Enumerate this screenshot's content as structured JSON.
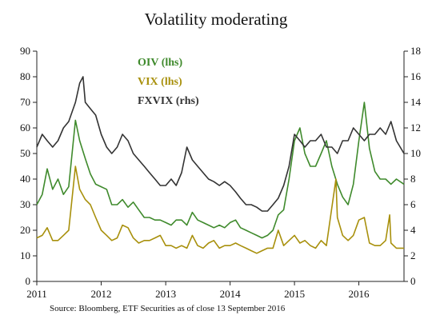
{
  "chart_data": {
    "type": "line",
    "title": "Volatility moderating",
    "source": "Source: Bloomberg, ETF Securities as of close 13 September 2016",
    "colors": {
      "OIV": "#3f8a2c",
      "VIX": "#a8900c",
      "FXVIX": "#333333"
    },
    "x_ticks": [
      "2011",
      "2012",
      "2013",
      "2014",
      "2015",
      "2016"
    ],
    "x_range": [
      "2011-01-01",
      "2016-09-13"
    ],
    "y_left": {
      "ticks": [
        "0",
        "10",
        "20",
        "30",
        "40",
        "50",
        "60",
        "70",
        "80",
        "90"
      ],
      "ylim": [
        0,
        90
      ]
    },
    "y_right": {
      "ticks": [
        "0",
        "2",
        "4",
        "6",
        "8",
        "10",
        "12",
        "14",
        "16",
        "18"
      ],
      "ylim": [
        0,
        18
      ]
    },
    "legend": [
      {
        "label": "OIV (lhs)",
        "key": "OIV"
      },
      {
        "label": "VIX (lhs)",
        "key": "VIX"
      },
      {
        "label": "FXVIX (rhs)",
        "key": "FXVIX"
      }
    ],
    "series": [
      {
        "name": "OIV (lhs)",
        "axis": "left",
        "key": "OIV",
        "x": [
          "2011-01-01",
          "2011-02-01",
          "2011-03-01",
          "2011-04-01",
          "2011-05-01",
          "2011-06-01",
          "2011-07-01",
          "2011-08-08",
          "2011-09-01",
          "2011-10-03",
          "2011-11-01",
          "2011-12-01",
          "2012-01-01",
          "2012-02-01",
          "2012-03-01",
          "2012-04-01",
          "2012-05-01",
          "2012-06-01",
          "2012-07-01",
          "2012-08-01",
          "2012-09-01",
          "2012-10-01",
          "2012-11-01",
          "2012-12-01",
          "2013-01-01",
          "2013-02-01",
          "2013-03-01",
          "2013-04-01",
          "2013-05-01",
          "2013-06-01",
          "2013-07-01",
          "2013-08-01",
          "2013-09-01",
          "2013-10-01",
          "2013-11-01",
          "2013-12-01",
          "2014-01-01",
          "2014-02-01",
          "2014-03-01",
          "2014-04-01",
          "2014-05-01",
          "2014-06-01",
          "2014-07-01",
          "2014-08-01",
          "2014-09-01",
          "2014-10-01",
          "2014-11-01",
          "2014-12-01",
          "2015-01-01",
          "2015-02-01",
          "2015-03-01",
          "2015-04-01",
          "2015-05-01",
          "2015-06-01",
          "2015-07-01",
          "2015-08-01",
          "2015-09-01",
          "2015-10-01",
          "2015-11-01",
          "2015-12-01",
          "2016-01-01",
          "2016-02-01",
          "2016-03-01",
          "2016-04-01",
          "2016-05-01",
          "2016-06-01",
          "2016-07-01",
          "2016-08-01",
          "2016-09-13"
        ],
        "y": [
          30,
          34,
          44,
          36,
          40,
          34,
          37,
          63,
          55,
          48,
          42,
          38,
          37,
          36,
          30,
          30,
          32,
          29,
          31,
          28,
          25,
          25,
          24,
          24,
          23,
          22,
          24,
          24,
          22,
          27,
          24,
          23,
          22,
          21,
          22,
          21,
          23,
          24,
          21,
          20,
          19,
          18,
          17,
          18,
          20,
          26,
          28,
          40,
          55,
          60,
          50,
          45,
          45,
          50,
          55,
          45,
          38,
          33,
          30,
          38,
          55,
          70,
          52,
          43,
          40,
          40,
          38,
          40,
          38
        ]
      },
      {
        "name": "VIX (lhs)",
        "axis": "left",
        "key": "VIX",
        "x": [
          "2011-01-01",
          "2011-02-01",
          "2011-03-01",
          "2011-04-01",
          "2011-05-01",
          "2011-06-01",
          "2011-07-01",
          "2011-08-08",
          "2011-09-01",
          "2011-10-03",
          "2011-11-01",
          "2011-12-01",
          "2012-01-01",
          "2012-02-01",
          "2012-03-01",
          "2012-04-01",
          "2012-05-01",
          "2012-06-01",
          "2012-07-01",
          "2012-08-01",
          "2012-09-01",
          "2012-10-01",
          "2012-11-01",
          "2012-12-01",
          "2013-01-01",
          "2013-02-01",
          "2013-03-01",
          "2013-04-01",
          "2013-05-01",
          "2013-06-01",
          "2013-07-01",
          "2013-08-01",
          "2013-09-01",
          "2013-10-01",
          "2013-11-01",
          "2013-12-01",
          "2014-01-01",
          "2014-02-01",
          "2014-03-01",
          "2014-04-01",
          "2014-05-01",
          "2014-06-01",
          "2014-07-01",
          "2014-08-01",
          "2014-09-01",
          "2014-10-01",
          "2014-11-01",
          "2014-12-01",
          "2015-01-01",
          "2015-02-01",
          "2015-03-01",
          "2015-04-01",
          "2015-05-01",
          "2015-06-01",
          "2015-07-01",
          "2015-08-24",
          "2015-09-01",
          "2015-10-01",
          "2015-11-01",
          "2015-12-01",
          "2016-01-01",
          "2016-02-01",
          "2016-03-01",
          "2016-04-01",
          "2016-05-01",
          "2016-06-01",
          "2016-06-24",
          "2016-07-01",
          "2016-08-01",
          "2016-09-13"
        ],
        "y": [
          17,
          18,
          21,
          16,
          16,
          18,
          20,
          45,
          36,
          32,
          30,
          25,
          20,
          18,
          16,
          17,
          22,
          21,
          17,
          15,
          16,
          16,
          17,
          18,
          14,
          14,
          13,
          14,
          13,
          18,
          14,
          13,
          15,
          16,
          13,
          14,
          14,
          15,
          14,
          13,
          12,
          11,
          12,
          13,
          13,
          20,
          14,
          16,
          18,
          15,
          16,
          14,
          13,
          16,
          14,
          40,
          25,
          18,
          16,
          18,
          24,
          25,
          15,
          14,
          14,
          16,
          26,
          15,
          13,
          13
        ]
      },
      {
        "name": "FXVIX (rhs)",
        "axis": "right",
        "key": "FXVIX",
        "x": [
          "2011-01-01",
          "2011-02-01",
          "2011-03-01",
          "2011-04-01",
          "2011-05-01",
          "2011-06-01",
          "2011-07-01",
          "2011-08-08",
          "2011-09-01",
          "2011-09-20",
          "2011-10-03",
          "2011-11-01",
          "2011-12-01",
          "2012-01-01",
          "2012-02-01",
          "2012-03-01",
          "2012-04-01",
          "2012-05-01",
          "2012-06-01",
          "2012-07-01",
          "2012-08-01",
          "2012-09-01",
          "2012-10-01",
          "2012-11-01",
          "2012-12-01",
          "2013-01-01",
          "2013-02-01",
          "2013-03-01",
          "2013-04-01",
          "2013-05-01",
          "2013-06-01",
          "2013-07-01",
          "2013-08-01",
          "2013-09-01",
          "2013-10-01",
          "2013-11-01",
          "2013-12-01",
          "2014-01-01",
          "2014-02-01",
          "2014-03-01",
          "2014-04-01",
          "2014-05-01",
          "2014-06-01",
          "2014-07-01",
          "2014-08-01",
          "2014-09-01",
          "2014-10-01",
          "2014-11-01",
          "2014-12-01",
          "2015-01-01",
          "2015-02-01",
          "2015-03-01",
          "2015-04-01",
          "2015-05-01",
          "2015-06-01",
          "2015-07-01",
          "2015-08-01",
          "2015-09-01",
          "2015-10-01",
          "2015-11-01",
          "2015-12-01",
          "2016-01-01",
          "2016-02-01",
          "2016-03-01",
          "2016-04-01",
          "2016-05-01",
          "2016-06-01",
          "2016-07-01",
          "2016-08-01",
          "2016-09-13"
        ],
        "y": [
          10.5,
          11.5,
          11.0,
          10.5,
          11.0,
          12.0,
          12.5,
          14.0,
          15.5,
          16.0,
          14.0,
          13.5,
          13.0,
          11.5,
          10.5,
          10.0,
          10.5,
          11.5,
          11.0,
          10.0,
          9.5,
          9.0,
          8.5,
          8.0,
          7.5,
          7.5,
          8.0,
          7.5,
          8.5,
          10.5,
          9.5,
          9.0,
          8.5,
          8.0,
          7.8,
          7.5,
          7.8,
          7.5,
          7.0,
          6.5,
          6.0,
          6.0,
          5.8,
          5.5,
          5.5,
          6.0,
          6.5,
          7.5,
          9.0,
          11.5,
          11.0,
          10.5,
          11.0,
          11.0,
          11.5,
          10.5,
          10.5,
          10.0,
          11.0,
          11.0,
          12.0,
          11.5,
          11.0,
          11.5,
          11.5,
          12.0,
          11.5,
          12.5,
          11.0,
          10.0
        ]
      }
    ]
  }
}
